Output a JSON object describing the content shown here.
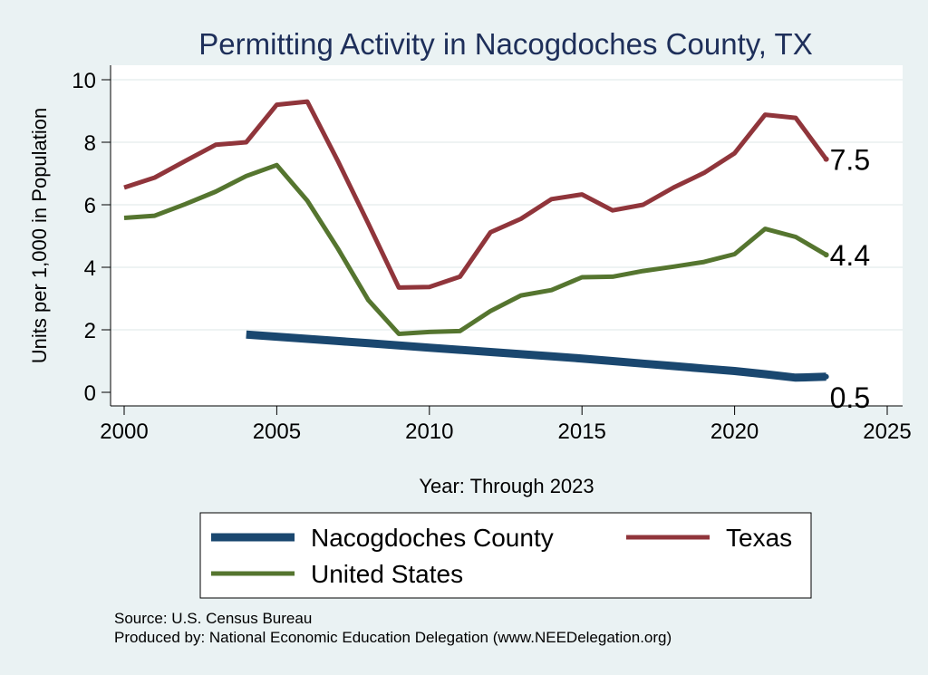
{
  "chart_data": {
    "type": "line",
    "title": "Permitting Activity in Nacogdoches County, TX",
    "xlabel": "Year: Through 2023",
    "ylabel": "Units per 1,000 in Population",
    "xlim": [
      2000,
      2025
    ],
    "ylim": [
      0,
      10
    ],
    "xticks": [
      2000,
      2005,
      2010,
      2015,
      2020,
      2025
    ],
    "yticks": [
      0,
      2,
      4,
      6,
      8,
      10
    ],
    "grid": true,
    "series": [
      {
        "name": "Nacogdoches County",
        "color": "#1a476f",
        "x": [
          2004,
          2005,
          2006,
          2007,
          2008,
          2009,
          2010,
          2011,
          2012,
          2013,
          2014,
          2015,
          2016,
          2017,
          2018,
          2019,
          2020,
          2021,
          2022,
          2023
        ],
        "y": [
          1.85,
          1.78,
          1.71,
          1.64,
          1.57,
          1.5,
          1.43,
          1.36,
          1.29,
          1.22,
          1.15,
          1.08,
          1.0,
          0.92,
          0.84,
          0.76,
          0.68,
          0.58,
          0.47,
          0.5
        ],
        "end_label": "0.5"
      },
      {
        "name": "Texas",
        "color": "#90353b",
        "x": [
          2000,
          2001,
          2002,
          2003,
          2004,
          2005,
          2006,
          2007,
          2008,
          2009,
          2010,
          2011,
          2012,
          2013,
          2014,
          2015,
          2016,
          2017,
          2018,
          2019,
          2020,
          2021,
          2022,
          2023
        ],
        "y": [
          6.55,
          6.87,
          7.4,
          7.92,
          8.0,
          9.2,
          9.3,
          7.4,
          5.4,
          3.35,
          3.37,
          3.7,
          5.12,
          5.55,
          6.18,
          6.33,
          5.82,
          6.0,
          6.55,
          7.02,
          7.65,
          8.88,
          8.78,
          7.46
        ],
        "end_label": "7.5"
      },
      {
        "name": "United States",
        "color": "#55752f",
        "x": [
          2000,
          2001,
          2002,
          2003,
          2004,
          2005,
          2006,
          2007,
          2008,
          2009,
          2010,
          2011,
          2012,
          2013,
          2014,
          2015,
          2016,
          2017,
          2018,
          2019,
          2020,
          2021,
          2022,
          2023
        ],
        "y": [
          5.58,
          5.65,
          6.02,
          6.42,
          6.92,
          7.27,
          6.13,
          4.6,
          2.95,
          1.87,
          1.93,
          1.96,
          2.6,
          3.1,
          3.27,
          3.68,
          3.7,
          3.88,
          4.02,
          4.17,
          4.42,
          5.23,
          4.97,
          4.4
        ],
        "end_label": "4.4"
      }
    ],
    "legend": {
      "position": "bottom",
      "items": [
        "Nacogdoches County",
        "Texas",
        "United States"
      ]
    },
    "source_note": "Source: U.S. Census Bureau",
    "produced_note": "Produced by: National Economic Education Delegation (www.NEEDelegation.org)"
  }
}
